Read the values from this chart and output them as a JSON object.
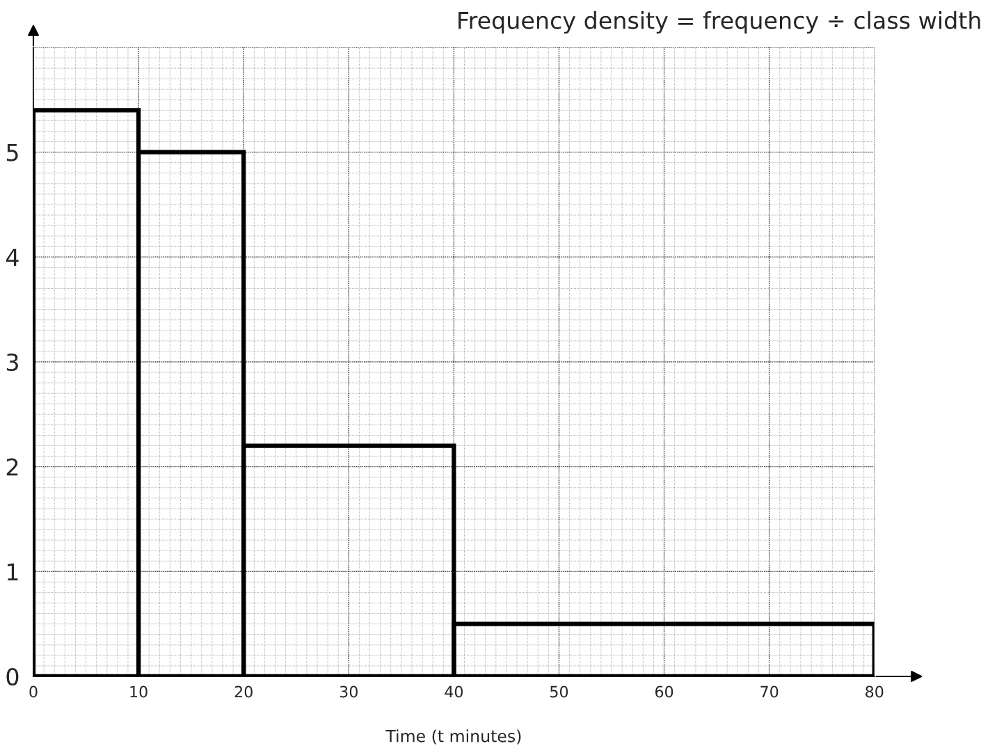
{
  "chart_data": {
    "type": "histogram",
    "ylabel": "Frequency density = frequency ÷ class width",
    "xlabel": "Time (t minutes)",
    "bins": [
      0,
      10,
      20,
      40,
      80
    ],
    "values": [
      5.4,
      5.0,
      2.2,
      0.5
    ],
    "color": "#000000",
    "xlim": [
      0,
      80
    ],
    "ylim": [
      0,
      6
    ],
    "xticks": [
      0,
      10,
      20,
      30,
      40,
      50,
      60,
      70,
      80
    ],
    "yticks": [
      0,
      1,
      2,
      3,
      4,
      5
    ],
    "grid": true
  }
}
